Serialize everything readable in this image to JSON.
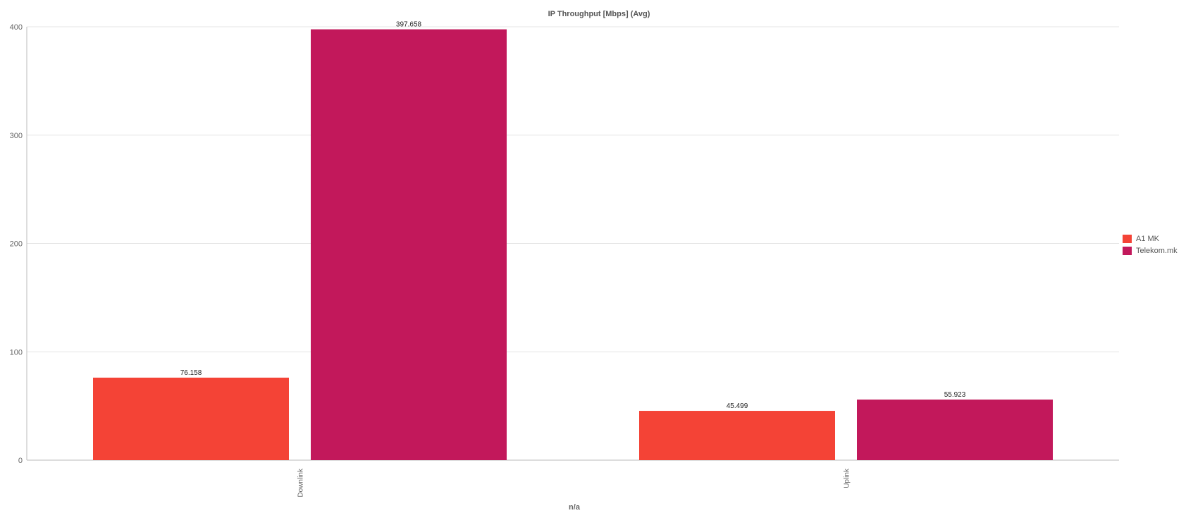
{
  "chart_data": {
    "type": "bar",
    "title": "IP Throughput [Mbps] (Avg)",
    "xlabel": "n/a",
    "ylabel": "",
    "categories": [
      "Downlink",
      "Uplink"
    ],
    "series": [
      {
        "name": "A1 MK",
        "color": "#f44336",
        "values": [
          76.158,
          45.499
        ]
      },
      {
        "name": "Telekom.mk",
        "color": "#c2185b",
        "values": [
          397.658,
          55.923
        ]
      }
    ],
    "ylim": [
      0,
      400
    ],
    "yticks": [
      0,
      100,
      200,
      300,
      400
    ],
    "grid": true,
    "legend": "right"
  }
}
